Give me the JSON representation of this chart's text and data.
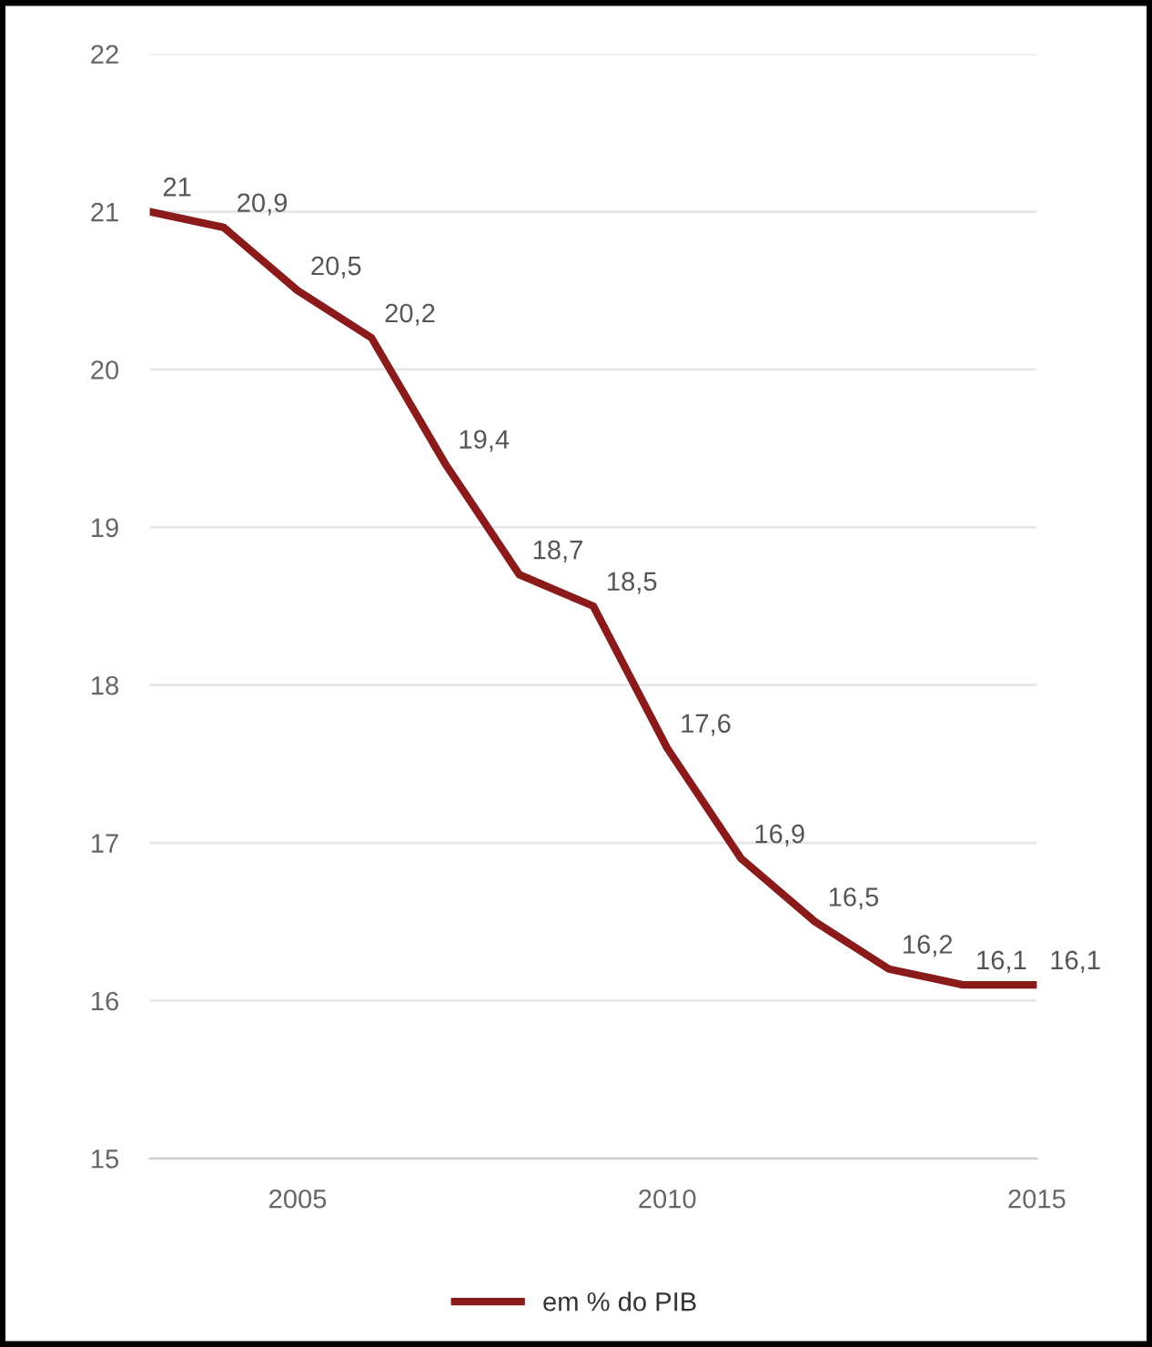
{
  "chart_data": {
    "type": "line",
    "x": [
      2003,
      2004,
      2005,
      2006,
      2007,
      2008,
      2009,
      2010,
      2011,
      2012,
      2013,
      2014,
      2015
    ],
    "series": [
      {
        "name": "em % do PIB",
        "color": "#8b1a1a",
        "values": [
          21,
          20.9,
          20.5,
          20.2,
          19.4,
          18.7,
          18.5,
          17.6,
          16.9,
          16.5,
          16.2,
          16.1,
          16.1
        ],
        "value_labels": [
          "21",
          "20,9",
          "20,5",
          "20,2",
          "19,4",
          "18,7",
          "18,5",
          "17,6",
          "16,9",
          "16,5",
          "16,2",
          "16,1",
          "16,1"
        ]
      }
    ],
    "xlim": [
      2003,
      2015
    ],
    "xticks": [
      2005,
      2010,
      2015
    ],
    "ylim": [
      15,
      22
    ],
    "yticks": [
      15,
      16,
      17,
      18,
      19,
      20,
      21,
      22
    ],
    "grid": "y",
    "legend": "bottom",
    "marker": "none",
    "line_style": "solid"
  }
}
